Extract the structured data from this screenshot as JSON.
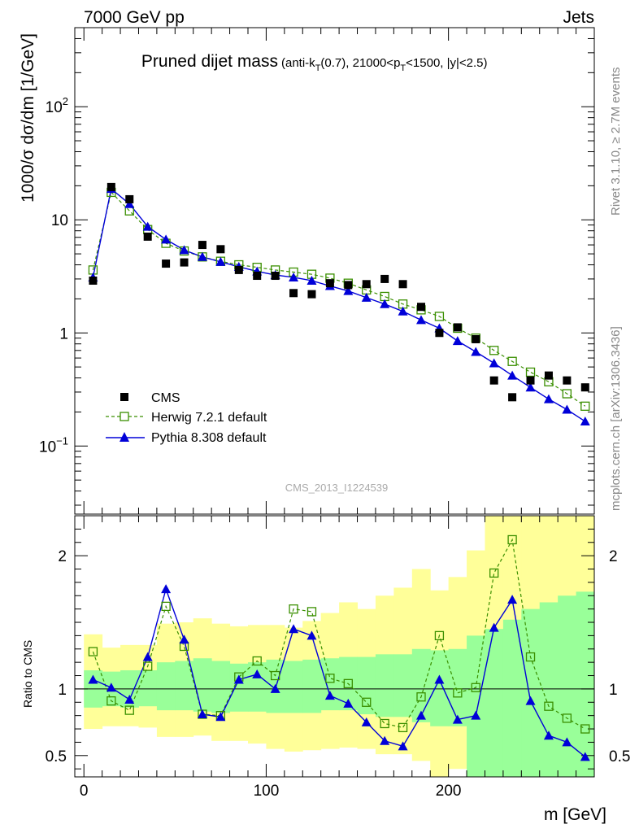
{
  "header": {
    "energy_label": "7000 GeV pp",
    "process_label": "Jets"
  },
  "side_labels": {
    "rivet": "Rivet 3.1.10, ≥ 2.7M events",
    "mcplots": "mcplots.cern.ch [arXiv:1306.3436]"
  },
  "colors": {
    "data": "#000000",
    "herwig": "#3a8f00",
    "pythia": "#0000d8",
    "band_yellow": "#ffff99",
    "band_green": "#99ff99"
  },
  "chart_data": [
    {
      "type": "scatter",
      "title": "Pruned dijet mass",
      "subtitle": "(anti-k_T(0.7), 21000<p_T<1500, |y|<2.5)",
      "ylabel": "1000/σ dσ/dm [1/GeV]",
      "xlabel": "m [GeV]",
      "yscale": "log",
      "ylim": [
        0.025,
        500
      ],
      "xlim": [
        -5,
        280
      ],
      "watermark": "CMS_2013_I1224539",
      "legend_position": "bottom-left",
      "x": [
        5,
        15,
        25,
        35,
        45,
        55,
        65,
        75,
        85,
        95,
        105,
        115,
        125,
        135,
        145,
        155,
        165,
        175,
        185,
        195,
        205,
        215,
        225,
        235,
        245,
        255,
        265,
        275
      ],
      "x_ticks": [
        0,
        100,
        200
      ],
      "y_tick_labels": [
        "10^-1",
        "1",
        "10",
        "10^2"
      ],
      "series": [
        {
          "name": "CMS",
          "style": "square-marker",
          "values": [
            2.9,
            19.5,
            15.2,
            7.1,
            4.1,
            4.2,
            6.0,
            5.5,
            3.6,
            3.2,
            3.2,
            2.25,
            2.2,
            2.75,
            2.65,
            2.7,
            3.0,
            2.7,
            1.7,
            1.0,
            1.12,
            0.88,
            0.38,
            0.27,
            0.38,
            0.42,
            0.38,
            0.33
          ]
        },
        {
          "name": "Herwig 7.2.1 default",
          "style": "dashed-open-square",
          "values": [
            3.6,
            17.5,
            12.0,
            8.2,
            6.2,
            5.3,
            4.7,
            4.3,
            4.0,
            3.8,
            3.6,
            3.45,
            3.3,
            3.05,
            2.75,
            2.4,
            2.1,
            1.8,
            1.6,
            1.4,
            1.1,
            0.9,
            0.7,
            0.56,
            0.45,
            0.37,
            0.29,
            0.225
          ]
        },
        {
          "name": "Pythia 8.308 default",
          "style": "solid-triangle",
          "values": [
            3.1,
            18.8,
            13.8,
            8.7,
            6.7,
            5.4,
            4.7,
            4.25,
            3.85,
            3.5,
            3.25,
            3.1,
            2.9,
            2.6,
            2.35,
            2.05,
            1.8,
            1.55,
            1.3,
            1.1,
            0.85,
            0.68,
            0.54,
            0.42,
            0.33,
            0.26,
            0.21,
            0.165
          ]
        }
      ]
    },
    {
      "type": "line",
      "ylabel": "Ratio to CMS",
      "xlabel": "m [GeV]",
      "ylim": [
        0.34,
        2.3
      ],
      "xlim": [
        -5,
        280
      ],
      "reference_line": 1,
      "y_ticks": [
        0.5,
        1,
        2
      ],
      "x": [
        5,
        15,
        25,
        35,
        45,
        55,
        65,
        75,
        85,
        95,
        105,
        115,
        125,
        135,
        145,
        155,
        165,
        175,
        185,
        195,
        205,
        215,
        225,
        235,
        245,
        255,
        265,
        275
      ],
      "bands": {
        "green_low": [
          0.86,
          0.87,
          0.86,
          0.87,
          0.84,
          0.84,
          0.83,
          0.82,
          0.83,
          0.83,
          0.82,
          0.82,
          0.82,
          0.84,
          0.84,
          0.81,
          0.79,
          0.79,
          0.75,
          0.72,
          0.72,
          0.34,
          0.34,
          0.34,
          0.34,
          0.34,
          0.34,
          0.34
        ],
        "green_high": [
          1.14,
          1.13,
          1.14,
          1.14,
          1.2,
          1.21,
          1.23,
          1.21,
          1.19,
          1.2,
          1.22,
          1.21,
          1.22,
          1.23,
          1.24,
          1.24,
          1.26,
          1.26,
          1.3,
          1.29,
          1.3,
          1.4,
          1.45,
          1.52,
          1.6,
          1.65,
          1.7,
          1.73
        ],
        "yellow_low": [
          0.7,
          0.72,
          0.72,
          0.71,
          0.64,
          0.64,
          0.65,
          0.61,
          0.61,
          0.59,
          0.55,
          0.53,
          0.54,
          0.55,
          0.56,
          0.55,
          0.51,
          0.51,
          0.46,
          0.34,
          0.4,
          0.4,
          0.34,
          0.34,
          0.34,
          0.37,
          0.34,
          0.34
        ],
        "yellow_high": [
          1.41,
          1.31,
          1.33,
          1.33,
          1.49,
          1.5,
          1.53,
          1.49,
          1.47,
          1.48,
          1.48,
          1.46,
          1.51,
          1.57,
          1.65,
          1.6,
          1.7,
          1.76,
          1.9,
          1.74,
          1.84,
          2.04,
          2.3,
          2.3,
          2.3,
          2.3,
          2.3,
          2.3
        ]
      },
      "series": [
        {
          "name": "Herwig 7.2.1 default",
          "values": [
            1.28,
            0.91,
            0.84,
            1.17,
            1.62,
            1.32,
            0.81,
            0.8,
            1.09,
            1.21,
            1.1,
            1.6,
            1.58,
            1.08,
            1.04,
            0.9,
            0.74,
            0.71,
            0.94,
            1.4,
            0.97,
            1.01,
            1.87,
            2.12,
            1.24,
            0.87,
            0.78,
            0.7
          ]
        },
        {
          "name": "Pythia 8.308 default",
          "values": [
            1.07,
            1.01,
            0.92,
            1.24,
            1.75,
            1.37,
            0.81,
            0.79,
            1.07,
            1.11,
            1.0,
            1.45,
            1.4,
            0.95,
            0.89,
            0.75,
            0.61,
            0.57,
            0.8,
            1.07,
            0.77,
            0.8,
            1.46,
            1.67,
            0.91,
            0.65,
            0.6,
            0.49
          ]
        }
      ]
    }
  ]
}
